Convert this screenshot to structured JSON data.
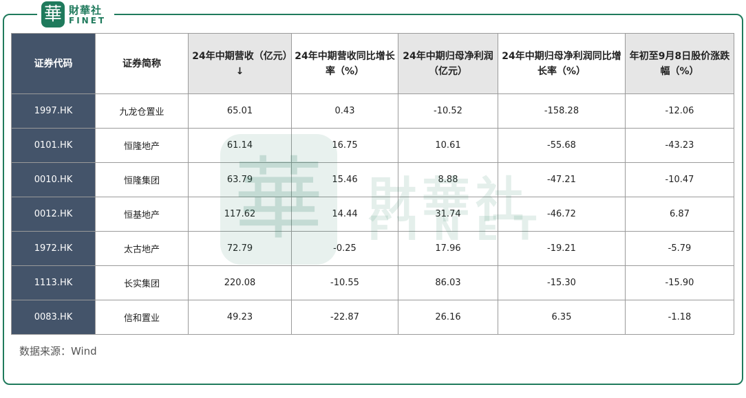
{
  "logo": {
    "mark": "華",
    "name": "財華社",
    "en": "FINET"
  },
  "table": {
    "header": [
      "证券代码",
      "证券简称",
      "24年中期营收（亿元）↓",
      "24年中期营收同比增长率（%）",
      "24年中期归母净利润（亿元）",
      "24年中期归母净利润同比增长率（%）",
      "年初至9月8日股价涨跌幅（%）"
    ],
    "rows": [
      [
        "1997.HK",
        "九龙仓置业",
        "65.01",
        "0.43",
        "-10.52",
        "-158.28",
        "-12.06"
      ],
      [
        "0101.HK",
        "恒隆地产",
        "61.14",
        "16.75",
        "10.61",
        "-55.68",
        "-43.23"
      ],
      [
        "0010.HK",
        "恒隆集团",
        "63.79",
        "15.46",
        "8.88",
        "-47.21",
        "-10.47"
      ],
      [
        "0012.HK",
        "恒基地产",
        "117.62",
        "14.44",
        "31.74",
        "-46.72",
        "6.87"
      ],
      [
        "1972.HK",
        "太古地产",
        "72.79",
        "-0.25",
        "17.96",
        "-19.21",
        "-5.79"
      ],
      [
        "1113.HK",
        "长实集团",
        "220.08",
        "-10.55",
        "86.03",
        "-15.30",
        "-15.90"
      ],
      [
        "0083.HK",
        "信和置业",
        "49.23",
        "-22.87",
        "26.16",
        "6.35",
        "-1.18"
      ]
    ]
  },
  "source": "数据来源：Wind"
}
